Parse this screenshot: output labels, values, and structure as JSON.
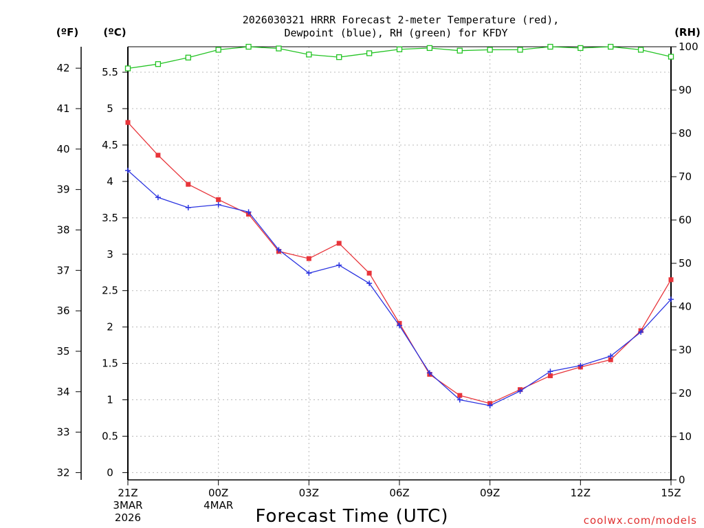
{
  "chart_data": {
    "type": "line",
    "title_line1": "2026030321 HRRR Forecast 2-meter Temperature (red),",
    "title_line2": "Dewpoint (blue), RH (green) for KFDY",
    "xlabel": "Forecast Time (UTC)",
    "credit": "coolwx.com/models",
    "units": {
      "f": "(ºF)",
      "c": "(ºC)",
      "rh": "(RH)"
    },
    "x_ticks": [
      {
        "hour": 0,
        "label": "21Z",
        "sub1": "3MAR",
        "sub2": "2026"
      },
      {
        "hour": 3,
        "label": "00Z",
        "sub1": "4MAR",
        "sub2": ""
      },
      {
        "hour": 6,
        "label": "03Z",
        "sub1": "",
        "sub2": ""
      },
      {
        "hour": 9,
        "label": "06Z",
        "sub1": "",
        "sub2": ""
      },
      {
        "hour": 12,
        "label": "09Z",
        "sub1": "",
        "sub2": ""
      },
      {
        "hour": 15,
        "label": "12Z",
        "sub1": "",
        "sub2": ""
      },
      {
        "hour": 18,
        "label": "15Z",
        "sub1": "",
        "sub2": ""
      }
    ],
    "xlim": [
      0,
      18
    ],
    "ylim_c": [
      -0.1,
      5.85
    ],
    "c_ticks": [
      "0",
      "0.5",
      "1",
      "1.5",
      "2",
      "2.5",
      "3",
      "3.5",
      "4",
      "4.5",
      "5",
      "5.5"
    ],
    "f_ticks": [
      "32",
      "33",
      "34",
      "35",
      "36",
      "37",
      "38",
      "39",
      "40",
      "41",
      "42"
    ],
    "rh_ticks": [
      "0",
      "10",
      "20",
      "30",
      "40",
      "50",
      "60",
      "70",
      "80",
      "90",
      "100"
    ],
    "hours": [
      0,
      1,
      2,
      3,
      4,
      5,
      6,
      7,
      8,
      9,
      10,
      11,
      12,
      13,
      14,
      15,
      16,
      17,
      18
    ],
    "series": [
      {
        "name": "Temperature",
        "axis": "c",
        "color": "#e8343a",
        "marker": "square",
        "values": [
          4.81,
          4.36,
          3.96,
          3.75,
          3.55,
          3.04,
          2.94,
          3.15,
          2.74,
          2.05,
          1.35,
          1.06,
          0.95,
          1.14,
          1.33,
          1.45,
          1.55,
          1.95,
          2.65
        ]
      },
      {
        "name": "Dewpoint",
        "axis": "c",
        "color": "#2a33e0",
        "marker": "plus",
        "values": [
          4.15,
          3.78,
          3.64,
          3.68,
          3.58,
          3.06,
          2.74,
          2.85,
          2.6,
          2.02,
          1.37,
          1.0,
          0.92,
          1.12,
          1.39,
          1.47,
          1.6,
          1.93,
          2.38
        ]
      },
      {
        "name": "RH",
        "axis": "rh",
        "color": "#22c322",
        "marker": "open-square",
        "values": [
          95,
          96,
          97.5,
          99.3,
          100,
          99.6,
          98.2,
          97.6,
          98.5,
          99.4,
          99.7,
          99.1,
          99.3,
          99.3,
          100,
          99.7,
          100,
          99.3,
          97.7
        ]
      }
    ]
  }
}
